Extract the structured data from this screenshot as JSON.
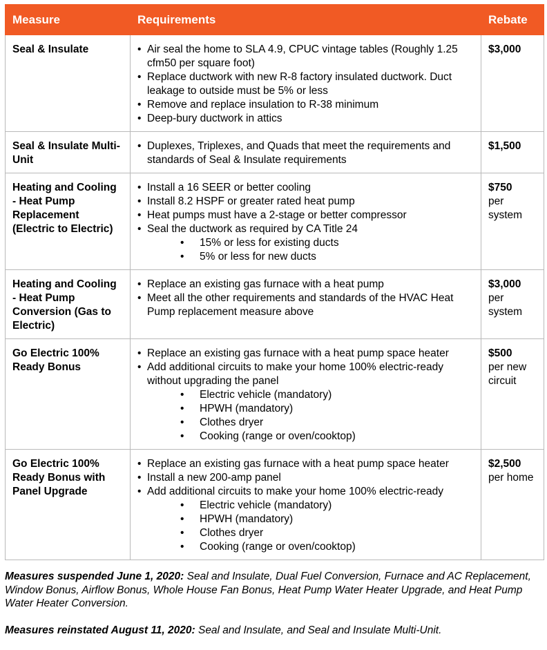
{
  "header": {
    "measure": "Measure",
    "requirements": "Requirements",
    "rebate": "Rebate"
  },
  "rows": [
    {
      "measure": "Seal & Insulate",
      "items": [
        {
          "t": "Air seal the home to SLA 4.9, CPUC vintage tables (Roughly 1.25 cfm50 per square foot)"
        },
        {
          "t": "Replace ductwork with new R-8 factory insulated ductwork. Duct leakage to outside must be 5% or less"
        },
        {
          "t": "Remove and replace insulation to R-38 minimum"
        },
        {
          "t": "Deep-bury ductwork in attics"
        }
      ],
      "rebate": "$3,000",
      "rebate_note": ""
    },
    {
      "measure": "Seal & Insulate Multi-Unit",
      "items": [
        {
          "t": "Duplexes, Triplexes, and Quads that meet the requirements and standards of Seal & Insulate requirements"
        }
      ],
      "rebate": "$1,500",
      "rebate_note": ""
    },
    {
      "measure": "Heating and Cooling - Heat Pump Replacement (Electric to Electric)",
      "items": [
        {
          "t": "Install a 16 SEER or better cooling"
        },
        {
          "t": "Install 8.2 HSPF or greater rated heat pump"
        },
        {
          "t": "Heat pumps must have a 2-stage or better compressor"
        },
        {
          "t": "Seal the ductwork as required by CA Title 24"
        },
        {
          "t": "15% or less for existing ducts",
          "sub": true
        },
        {
          "t": "5% or less for new ducts",
          "sub": true
        }
      ],
      "rebate": "$750",
      "rebate_note": "per system"
    },
    {
      "measure": "Heating and Cooling - Heat Pump Conversion (Gas to Electric)",
      "items": [
        {
          "t": "Replace an existing gas furnace with a heat pump"
        },
        {
          "t": "Meet all the other requirements and standards of the HVAC Heat Pump replacement measure above"
        }
      ],
      "rebate": "$3,000",
      "rebate_note": "per system"
    },
    {
      "measure": "Go Electric 100% Ready Bonus",
      "items": [
        {
          "t": "Replace an existing gas furnace with a heat pump space heater"
        },
        {
          "t": "Add additional circuits to make your home 100% electric-ready without upgrading the panel"
        },
        {
          "t": "Electric vehicle (mandatory)",
          "sub": true
        },
        {
          "t": "HPWH (mandatory)",
          "sub": true
        },
        {
          "t": "Clothes dryer",
          "sub": true
        },
        {
          "t": "Cooking (range or oven/cooktop)",
          "sub": true
        }
      ],
      "rebate": "$500",
      "rebate_note": "per new circuit"
    },
    {
      "measure": "Go Electric 100% Ready Bonus with Panel Upgrade",
      "items": [
        {
          "t": "Replace an existing gas furnace with a heat pump space heater"
        },
        {
          "t": "Install a new 200-amp panel"
        },
        {
          "t": "Add additional circuits to make your home 100% electric-ready"
        },
        {
          "t": "Electric vehicle (mandatory)",
          "sub": true
        },
        {
          "t": "HPWH (mandatory)",
          "sub": true
        },
        {
          "t": "Clothes dryer",
          "sub": true
        },
        {
          "t": "Cooking (range or oven/cooktop)",
          "sub": true
        }
      ],
      "rebate": "$2,500",
      "rebate_note": "per home"
    }
  ],
  "notes": [
    {
      "label": "Measures suspended June 1, 2020:",
      "text": " Seal and Insulate, Dual Fuel Conversion, Furnace and AC Replacement, Window Bonus, Airflow Bonus, Whole House Fan Bonus, Heat Pump Water Heater Upgrade, and Heat Pump Water Heater Conversion."
    },
    {
      "label": "Measures reinstated August 11, 2020:",
      "text": " Seal and Insulate, and Seal and Insulate Multi-Unit."
    }
  ]
}
